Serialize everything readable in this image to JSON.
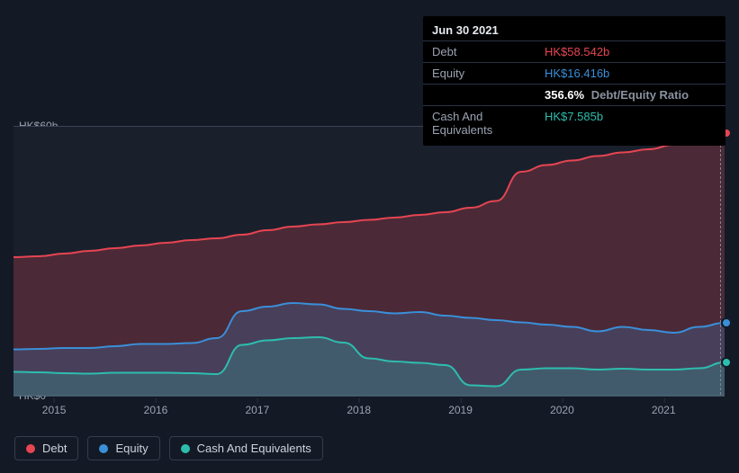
{
  "tooltip": {
    "date": "Jun 30 2021",
    "rows": [
      {
        "label": "Debt",
        "value": "HK$58.542b",
        "color": "#e64552"
      },
      {
        "label": "Equity",
        "value": "HK$16.416b",
        "color": "#3a8fd9"
      },
      {
        "label": "",
        "value": "356.6%",
        "sub": "Debt/Equity Ratio",
        "color": "#ffffff"
      },
      {
        "label": "Cash And Equivalents",
        "value": "HK$7.585b",
        "color": "#2dbdae"
      }
    ]
  },
  "chart": {
    "type": "area",
    "background_color": "#19202c",
    "page_background": "#131a25",
    "grid_color": "#2a3342",
    "ylim": [
      0,
      60
    ],
    "y_ticks": [
      {
        "v": 60,
        "label": "HK$60b"
      },
      {
        "v": 0,
        "label": "HK$0"
      }
    ],
    "x_ticks": [
      {
        "t": 2015,
        "label": "2015"
      },
      {
        "t": 2016,
        "label": "2016"
      },
      {
        "t": 2017,
        "label": "2017"
      },
      {
        "t": 2018,
        "label": "2018"
      },
      {
        "t": 2019,
        "label": "2019"
      },
      {
        "t": 2020,
        "label": "2020"
      },
      {
        "t": 2021,
        "label": "2021"
      }
    ],
    "x_start": 2014.6,
    "x_end": 2021.6,
    "cursor_at": 2021.55,
    "axis_fontsize": 12,
    "series": [
      {
        "key": "debt",
        "name": "Debt",
        "stroke": "#e64552",
        "fill": "rgba(230,69,82,0.25)",
        "line_width": 2,
        "end_value": 58.542,
        "points": [
          [
            2014.6,
            31.0
          ],
          [
            2014.85,
            31.2
          ],
          [
            2015.1,
            31.8
          ],
          [
            2015.35,
            32.4
          ],
          [
            2015.6,
            33.0
          ],
          [
            2015.85,
            33.6
          ],
          [
            2016.1,
            34.2
          ],
          [
            2016.35,
            34.8
          ],
          [
            2016.6,
            35.2
          ],
          [
            2016.85,
            36.0
          ],
          [
            2017.1,
            37.0
          ],
          [
            2017.35,
            37.8
          ],
          [
            2017.6,
            38.3
          ],
          [
            2017.85,
            38.8
          ],
          [
            2018.1,
            39.3
          ],
          [
            2018.35,
            39.8
          ],
          [
            2018.6,
            40.4
          ],
          [
            2018.85,
            41.0
          ],
          [
            2019.1,
            42.0
          ],
          [
            2019.35,
            43.5
          ],
          [
            2019.6,
            50.0
          ],
          [
            2019.85,
            51.5
          ],
          [
            2020.1,
            52.5
          ],
          [
            2020.35,
            53.5
          ],
          [
            2020.6,
            54.3
          ],
          [
            2020.85,
            55.0
          ],
          [
            2021.1,
            56.0
          ],
          [
            2021.35,
            57.2
          ],
          [
            2021.6,
            58.5
          ]
        ]
      },
      {
        "key": "equity",
        "name": "Equity",
        "stroke": "#3a8fd9",
        "fill": "rgba(58,143,217,0.22)",
        "line_width": 2,
        "end_value": 16.416,
        "points": [
          [
            2014.6,
            10.5
          ],
          [
            2014.85,
            10.6
          ],
          [
            2015.1,
            10.8
          ],
          [
            2015.35,
            10.8
          ],
          [
            2015.6,
            11.2
          ],
          [
            2015.85,
            11.7
          ],
          [
            2016.1,
            11.7
          ],
          [
            2016.35,
            11.9
          ],
          [
            2016.6,
            13.0
          ],
          [
            2016.85,
            19.0
          ],
          [
            2017.1,
            20.0
          ],
          [
            2017.35,
            20.8
          ],
          [
            2017.6,
            20.5
          ],
          [
            2017.85,
            19.5
          ],
          [
            2018.1,
            19.0
          ],
          [
            2018.35,
            18.5
          ],
          [
            2018.6,
            18.8
          ],
          [
            2018.85,
            18.0
          ],
          [
            2019.1,
            17.5
          ],
          [
            2019.35,
            17.0
          ],
          [
            2019.6,
            16.5
          ],
          [
            2019.85,
            16.0
          ],
          [
            2020.1,
            15.5
          ],
          [
            2020.35,
            14.5
          ],
          [
            2020.6,
            15.5
          ],
          [
            2020.85,
            14.8
          ],
          [
            2021.1,
            14.2
          ],
          [
            2021.35,
            15.5
          ],
          [
            2021.6,
            16.4
          ]
        ]
      },
      {
        "key": "cash",
        "name": "Cash And Equivalents",
        "stroke": "#2dbdae",
        "fill": "rgba(45,189,174,0.22)",
        "line_width": 2,
        "end_value": 7.585,
        "points": [
          [
            2014.6,
            5.5
          ],
          [
            2014.85,
            5.4
          ],
          [
            2015.1,
            5.2
          ],
          [
            2015.35,
            5.1
          ],
          [
            2015.6,
            5.3
          ],
          [
            2015.85,
            5.3
          ],
          [
            2016.1,
            5.3
          ],
          [
            2016.35,
            5.2
          ],
          [
            2016.6,
            5.0
          ],
          [
            2016.85,
            11.5
          ],
          [
            2017.1,
            12.5
          ],
          [
            2017.35,
            13.0
          ],
          [
            2017.6,
            13.2
          ],
          [
            2017.85,
            12.0
          ],
          [
            2018.1,
            8.5
          ],
          [
            2018.35,
            7.8
          ],
          [
            2018.6,
            7.5
          ],
          [
            2018.85,
            7.0
          ],
          [
            2019.1,
            2.5
          ],
          [
            2019.35,
            2.3
          ],
          [
            2019.6,
            6.0
          ],
          [
            2019.85,
            6.3
          ],
          [
            2020.1,
            6.3
          ],
          [
            2020.35,
            6.0
          ],
          [
            2020.6,
            6.2
          ],
          [
            2020.85,
            6.0
          ],
          [
            2021.1,
            6.0
          ],
          [
            2021.35,
            6.3
          ],
          [
            2021.6,
            7.6
          ]
        ]
      }
    ]
  },
  "legend": {
    "items": [
      {
        "key": "debt",
        "label": "Debt",
        "color": "#e64552"
      },
      {
        "key": "equity",
        "label": "Equity",
        "color": "#3a8fd9"
      },
      {
        "key": "cash",
        "label": "Cash And Equivalents",
        "color": "#2dbdae"
      }
    ],
    "fontsize": 13
  }
}
